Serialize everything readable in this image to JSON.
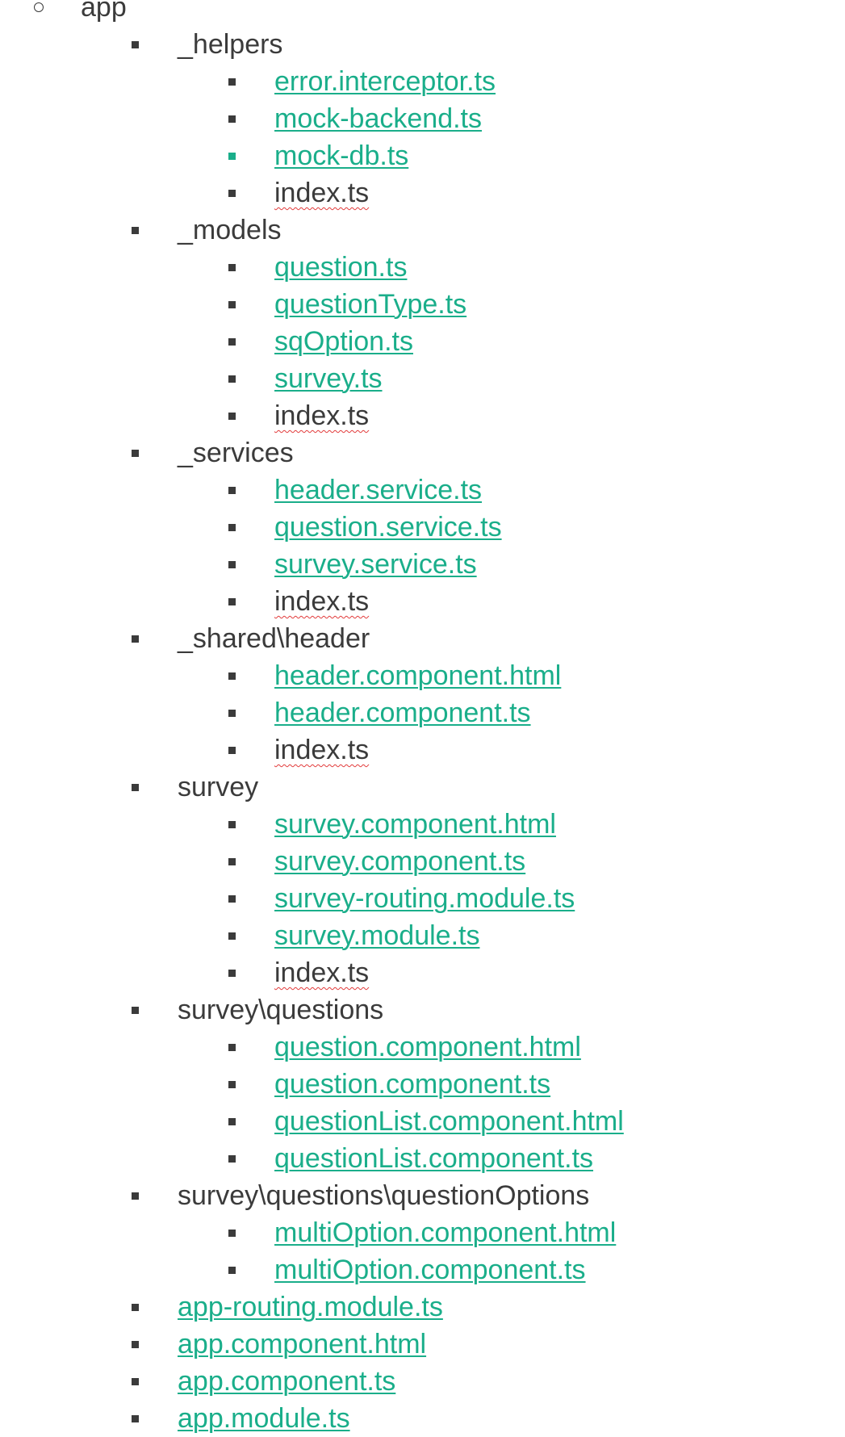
{
  "root": "app",
  "folders": [
    {
      "name": "_helpers",
      "files": [
        {
          "name": "error.interceptor.ts",
          "link": true
        },
        {
          "name": "mock-backend.ts",
          "link": true
        },
        {
          "name": "mock-db.ts",
          "link": true,
          "teal_bullet": true
        },
        {
          "name": "index.ts",
          "link": false
        }
      ]
    },
    {
      "name": "_models",
      "files": [
        {
          "name": "question.ts",
          "link": true
        },
        {
          "name": "questionType.ts",
          "link": true
        },
        {
          "name": "sqOption.ts",
          "link": true
        },
        {
          "name": "survey.ts",
          "link": true
        },
        {
          "name": "index.ts",
          "link": false
        }
      ]
    },
    {
      "name": "_services",
      "files": [
        {
          "name": "header.service.ts",
          "link": true
        },
        {
          "name": "question.service.ts",
          "link": true
        },
        {
          "name": "survey.service.ts",
          "link": true
        },
        {
          "name": "index.ts",
          "link": false
        }
      ]
    },
    {
      "name": "_shared\\header",
      "files": [
        {
          "name": "header.component.html",
          "link": true
        },
        {
          "name": "header.component.ts",
          "link": true
        },
        {
          "name": "index.ts",
          "link": false
        }
      ]
    },
    {
      "name": "survey",
      "files": [
        {
          "name": "survey.component.html",
          "link": true
        },
        {
          "name": "survey.component.ts",
          "link": true
        },
        {
          "name": "survey-routing.module.ts",
          "link": true
        },
        {
          "name": "survey.module.ts",
          "link": true
        },
        {
          "name": "index.ts",
          "link": false
        }
      ]
    },
    {
      "name": "survey\\questions",
      "files": [
        {
          "name": "question.component.html",
          "link": true
        },
        {
          "name": "question.component.ts",
          "link": true
        },
        {
          "name": "questionList.component.html",
          "link": true
        },
        {
          "name": "questionList.component.ts",
          "link": true
        }
      ]
    },
    {
      "name": "survey\\questions\\questionOptions",
      "files": [
        {
          "name": "multiOption.component.html",
          "link": true
        },
        {
          "name": "multiOption.component.ts",
          "link": true
        }
      ]
    }
  ],
  "root_files": [
    {
      "name": "app-routing.module.ts",
      "link": true
    },
    {
      "name": "app.component.html",
      "link": true
    },
    {
      "name": "app.component.ts",
      "link": true
    },
    {
      "name": "app.module.ts",
      "link": true
    }
  ],
  "colors": {
    "text": "#3b3b3b",
    "link": "#1aae8a",
    "spellcheck": "#e23b3b"
  }
}
